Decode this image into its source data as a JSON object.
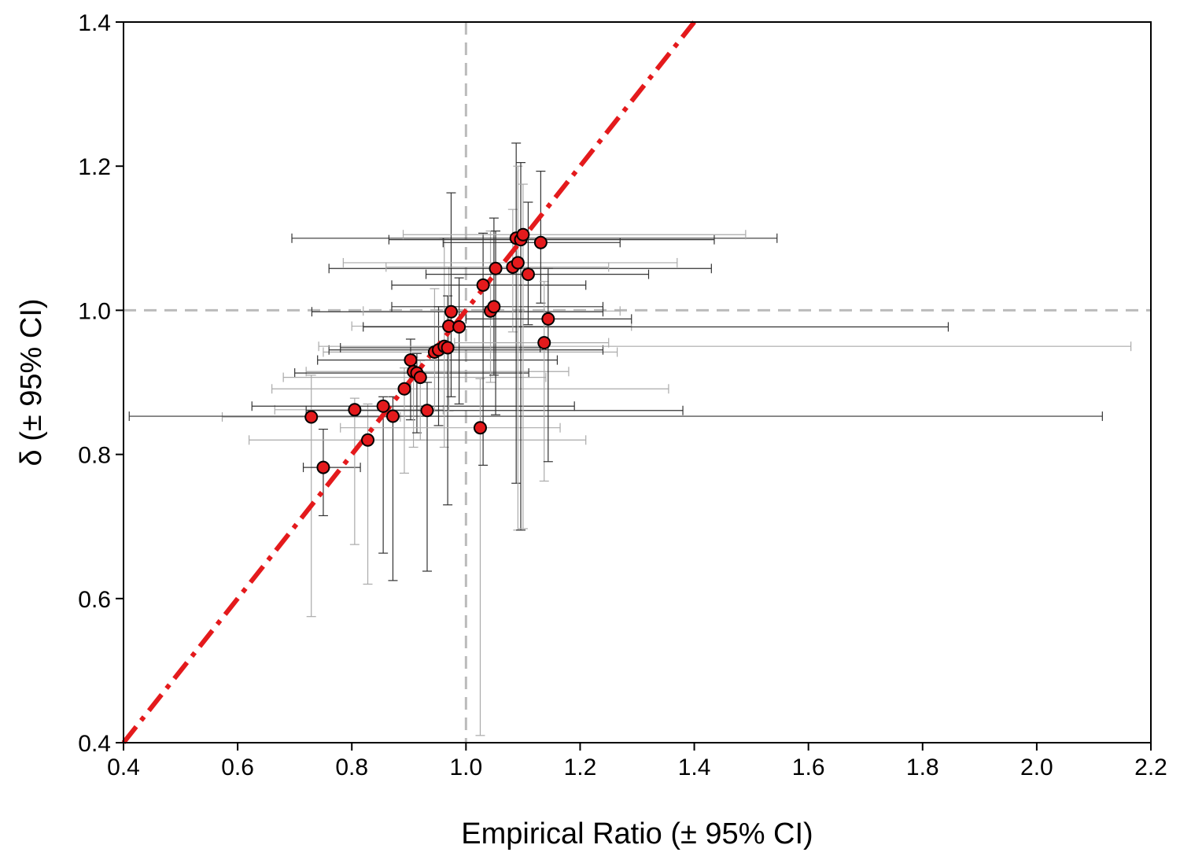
{
  "chart_data": {
    "type": "scatter",
    "title": "",
    "xlabel": "Empirical Ratio (± 95% CI)",
    "ylabel": "δ (± 95% CI)",
    "xlim": [
      0.4,
      2.2
    ],
    "ylim": [
      0.4,
      1.4
    ],
    "x_ticks": [
      "0.4",
      "0.6",
      "0.8",
      "1.0",
      "1.2",
      "1.4",
      "1.6",
      "1.8",
      "2.0",
      "2.2"
    ],
    "y_ticks": [
      "0.4",
      "0.6",
      "0.8",
      "1.0",
      "1.2",
      "1.4"
    ],
    "grid": false,
    "reference_lines": {
      "vertical_x": 1.0,
      "horizontal_y": 1.0,
      "identity_line": "y = x"
    },
    "colors": {
      "points": "#e41a1c",
      "point_edge": "#000000",
      "identity_line": "#e41a1c",
      "reference_lines": "#bbbbbb",
      "error_dark": "#333333",
      "error_light": "#aaaaaa"
    },
    "points": [
      {
        "x": 0.729,
        "y": 0.852,
        "xci": [
          0.573,
          0.885
        ],
        "yci": [
          0.575,
          0.91
        ],
        "shade": "light"
      },
      {
        "x": 0.75,
        "y": 0.782,
        "xci": [
          0.715,
          0.815
        ],
        "yci": [
          0.715,
          0.835
        ],
        "shade": "dark"
      },
      {
        "x": 0.805,
        "y": 0.862,
        "xci": [
          0.665,
          0.96
        ],
        "yci": [
          0.675,
          0.878
        ],
        "shade": "light"
      },
      {
        "x": 0.828,
        "y": 0.82,
        "xci": [
          0.62,
          1.21
        ],
        "yci": [
          0.62,
          0.87
        ],
        "shade": "light"
      },
      {
        "x": 0.855,
        "y": 0.867,
        "xci": [
          0.625,
          1.19
        ],
        "yci": [
          0.663,
          0.88
        ],
        "shade": "dark"
      },
      {
        "x": 0.872,
        "y": 0.853,
        "xci": [
          0.41,
          2.115
        ],
        "yci": [
          0.625,
          0.88
        ],
        "shade": "dark"
      },
      {
        "x": 0.892,
        "y": 0.891,
        "xci": [
          0.66,
          1.355
        ],
        "yci": [
          0.774,
          0.92
        ],
        "shade": "light"
      },
      {
        "x": 0.903,
        "y": 0.931,
        "xci": [
          0.74,
          1.16
        ],
        "yci": [
          0.848,
          0.96
        ],
        "shade": "dark"
      },
      {
        "x": 0.908,
        "y": 0.915,
        "xci": [
          0.72,
          1.18
        ],
        "yci": [
          0.81,
          0.935
        ],
        "shade": "light"
      },
      {
        "x": 0.914,
        "y": 0.913,
        "xci": [
          0.7,
          1.11
        ],
        "yci": [
          0.83,
          0.94
        ],
        "shade": "dark"
      },
      {
        "x": 0.92,
        "y": 0.907,
        "xci": [
          0.68,
          1.14
        ],
        "yci": [
          0.82,
          0.93
        ],
        "shade": "light"
      },
      {
        "x": 0.932,
        "y": 0.861,
        "xci": [
          0.72,
          1.38
        ],
        "yci": [
          0.638,
          0.9
        ],
        "shade": "dark"
      },
      {
        "x": 0.945,
        "y": 0.942,
        "xci": [
          0.75,
          1.265
        ],
        "yci": [
          0.86,
          1.03
        ],
        "shade": "light"
      },
      {
        "x": 0.952,
        "y": 0.945,
        "xci": [
          0.76,
          1.24
        ],
        "yci": [
          0.84,
          1.005
        ],
        "shade": "dark"
      },
      {
        "x": 0.962,
        "y": 0.95,
        "xci": [
          0.742,
          2.165
        ],
        "yci": [
          0.81,
          1.1
        ],
        "shade": "light"
      },
      {
        "x": 0.968,
        "y": 0.948,
        "xci": [
          0.78,
          1.13
        ],
        "yci": [
          0.73,
          1.02
        ],
        "shade": "dark"
      },
      {
        "x": 0.97,
        "y": 0.978,
        "xci": [
          0.8,
          1.29
        ],
        "yci": [
          0.86,
          1.06
        ],
        "shade": "light"
      },
      {
        "x": 0.974,
        "y": 0.998,
        "xci": [
          0.73,
          1.24
        ],
        "yci": [
          0.88,
          1.163
        ],
        "shade": "dark"
      },
      {
        "x": 0.988,
        "y": 0.977,
        "xci": [
          0.82,
          1.845
        ],
        "yci": [
          0.87,
          1.045
        ],
        "shade": "dark"
      },
      {
        "x": 1.025,
        "y": 0.837,
        "xci": [
          0.78,
          1.165
        ],
        "yci": [
          0.41,
          0.905
        ],
        "shade": "light"
      },
      {
        "x": 1.03,
        "y": 1.035,
        "xci": [
          0.87,
          1.21
        ],
        "yci": [
          0.785,
          1.107
        ],
        "shade": "dark"
      },
      {
        "x": 1.043,
        "y": 0.999,
        "xci": [
          0.82,
          1.27
        ],
        "yci": [
          0.9,
          1.11
        ],
        "shade": "light"
      },
      {
        "x": 1.049,
        "y": 1.005,
        "xci": [
          0.87,
          1.24
        ],
        "yci": [
          0.91,
          1.128
        ],
        "shade": "dark"
      },
      {
        "x": 1.052,
        "y": 1.058,
        "xci": [
          0.76,
          1.43
        ],
        "yci": [
          0.855,
          1.11
        ],
        "shade": "dark"
      },
      {
        "x": 1.082,
        "y": 1.06,
        "xci": [
          0.86,
          1.25
        ],
        "yci": [
          0.97,
          1.14
        ],
        "shade": "light"
      },
      {
        "x": 1.088,
        "y": 1.1,
        "xci": [
          0.695,
          1.545
        ],
        "yci": [
          0.76,
          1.232
        ],
        "shade": "dark"
      },
      {
        "x": 1.091,
        "y": 1.066,
        "xci": [
          0.785,
          1.37
        ],
        "yci": [
          0.695,
          1.2
        ],
        "shade": "light"
      },
      {
        "x": 1.096,
        "y": 1.098,
        "xci": [
          0.865,
          1.435
        ],
        "yci": [
          0.695,
          1.205
        ],
        "shade": "dark"
      },
      {
        "x": 1.1,
        "y": 1.105,
        "xci": [
          0.89,
          1.49
        ],
        "yci": [
          0.697,
          1.175
        ],
        "shade": "light"
      },
      {
        "x": 1.109,
        "y": 1.05,
        "xci": [
          0.93,
          1.32
        ],
        "yci": [
          0.98,
          1.15
        ],
        "shade": "dark"
      },
      {
        "x": 1.131,
        "y": 1.094,
        "xci": [
          0.96,
          1.27
        ],
        "yci": [
          1.01,
          1.193
        ],
        "shade": "dark"
      },
      {
        "x": 1.137,
        "y": 0.955,
        "xci": [
          0.98,
          1.25
        ],
        "yci": [
          0.763,
          1.04
        ],
        "shade": "light"
      },
      {
        "x": 1.144,
        "y": 0.988,
        "xci": [
          1.0,
          1.29
        ],
        "yci": [
          0.79,
          1.058
        ],
        "shade": "dark"
      }
    ]
  }
}
